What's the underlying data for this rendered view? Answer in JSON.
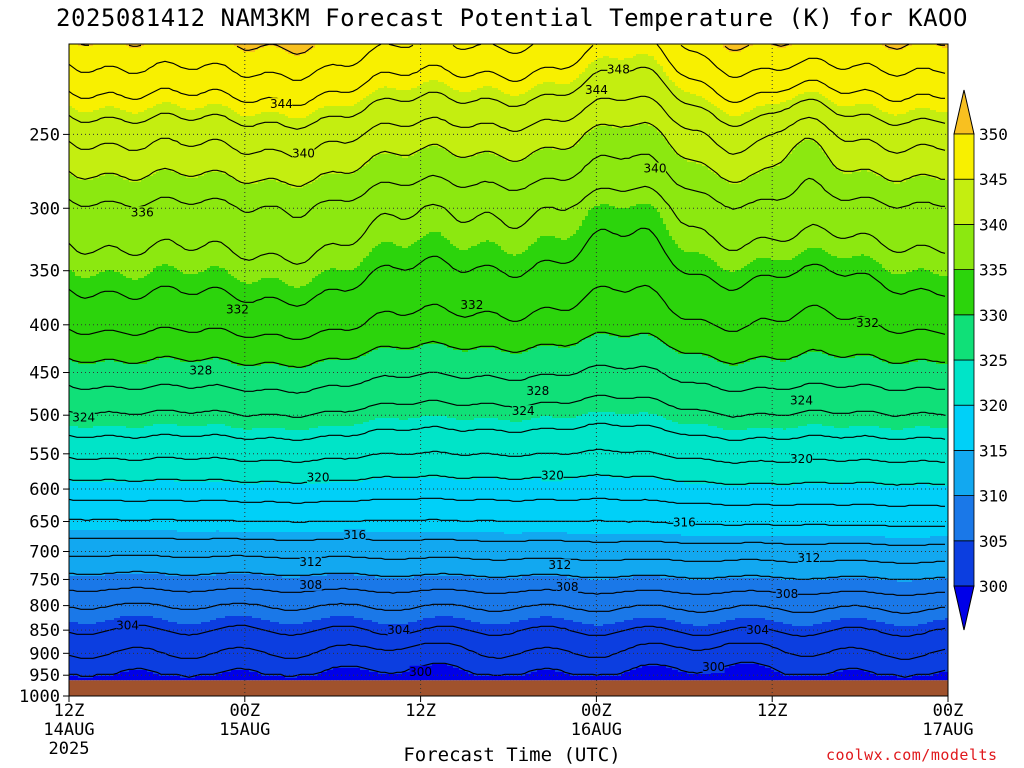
{
  "title": "2025081412 NAM3KM Forecast Potential Temperature (K) for KAOO",
  "credit": "coolwx.com/modelts",
  "chart_data": {
    "type": "heatmap",
    "title": "2025081412 NAM3KM Forecast Potential Temperature (K) for KAOO",
    "xlabel": "Forecast Time (UTC)",
    "ylabel": "",
    "y_scale": "log (pressure, hPa)",
    "y_axis": {
      "ticks": [
        250,
        300,
        350,
        400,
        450,
        500,
        550,
        600,
        650,
        700,
        750,
        800,
        850,
        900,
        950,
        1000
      ],
      "range": [
        200,
        1000
      ],
      "direction": "pressure decreases upward"
    },
    "x_axis": {
      "range_hours": [
        0,
        60
      ],
      "ticks": [
        {
          "hour": 0,
          "label": "12Z",
          "sub": "14AUG",
          "sub2": "2025"
        },
        {
          "hour": 12,
          "label": "00Z",
          "sub": "15AUG",
          "sub2": ""
        },
        {
          "hour": 24,
          "label": "12Z",
          "sub": "",
          "sub2": ""
        },
        {
          "hour": 36,
          "label": "00Z",
          "sub": "16AUG",
          "sub2": ""
        },
        {
          "hour": 48,
          "label": "12Z",
          "sub": "",
          "sub2": ""
        },
        {
          "hour": 60,
          "label": "00Z",
          "sub": "17AUG",
          "sub2": ""
        }
      ]
    },
    "grid": true,
    "colorbar": {
      "levels": [
        300,
        305,
        310,
        315,
        320,
        325,
        330,
        335,
        340,
        345,
        350
      ],
      "colors": [
        "#0000e8",
        "#0c3ee0",
        "#1a78e8",
        "#12a8f0",
        "#00d0f8",
        "#00e4c8",
        "#10e078",
        "#2cd40c",
        "#8ce810",
        "#c4ee10",
        "#f8f000",
        "#f8c020"
      ],
      "labels": [
        "300",
        "305",
        "310",
        "315",
        "320",
        "325",
        "330",
        "335",
        "340",
        "345",
        "350"
      ],
      "extend": "both",
      "placement": "right"
    },
    "contour_interval_K": 2,
    "labeled_contours": [
      {
        "value": 348,
        "hour": 37.5,
        "pressure": 213
      },
      {
        "value": 344,
        "hour": 14.5,
        "pressure": 232
      },
      {
        "value": 344,
        "hour": 36,
        "pressure": 224
      },
      {
        "value": 340,
        "hour": 16,
        "pressure": 262
      },
      {
        "value": 340,
        "hour": 40,
        "pressure": 272
      },
      {
        "value": 336,
        "hour": 5,
        "pressure": 303
      },
      {
        "value": 332,
        "hour": 11.5,
        "pressure": 385
      },
      {
        "value": 332,
        "hour": 27.5,
        "pressure": 381
      },
      {
        "value": 332,
        "hour": 54.5,
        "pressure": 398
      },
      {
        "value": 328,
        "hour": 9,
        "pressure": 448
      },
      {
        "value": 328,
        "hour": 32,
        "pressure": 471
      },
      {
        "value": 324,
        "hour": 1,
        "pressure": 503
      },
      {
        "value": 324,
        "hour": 31,
        "pressure": 495
      },
      {
        "value": 324,
        "hour": 50,
        "pressure": 482
      },
      {
        "value": 320,
        "hour": 17,
        "pressure": 583
      },
      {
        "value": 320,
        "hour": 33,
        "pressure": 580
      },
      {
        "value": 320,
        "hour": 50,
        "pressure": 557
      },
      {
        "value": 316,
        "hour": 19.5,
        "pressure": 672
      },
      {
        "value": 316,
        "hour": 42,
        "pressure": 652
      },
      {
        "value": 312,
        "hour": 16.5,
        "pressure": 718
      },
      {
        "value": 312,
        "hour": 33.5,
        "pressure": 724
      },
      {
        "value": 312,
        "hour": 50.5,
        "pressure": 711
      },
      {
        "value": 308,
        "hour": 16.5,
        "pressure": 760
      },
      {
        "value": 308,
        "hour": 34,
        "pressure": 764
      },
      {
        "value": 308,
        "hour": 49,
        "pressure": 777
      },
      {
        "value": 304,
        "hour": 4,
        "pressure": 840
      },
      {
        "value": 304,
        "hour": 22.5,
        "pressure": 850
      },
      {
        "value": 304,
        "hour": 47,
        "pressure": 850
      },
      {
        "value": 300,
        "hour": 24,
        "pressure": 942
      },
      {
        "value": 300,
        "hour": 44,
        "pressure": 931
      }
    ],
    "surface_pressure_hPa": 962,
    "below_ground_color": "#a0522d"
  }
}
